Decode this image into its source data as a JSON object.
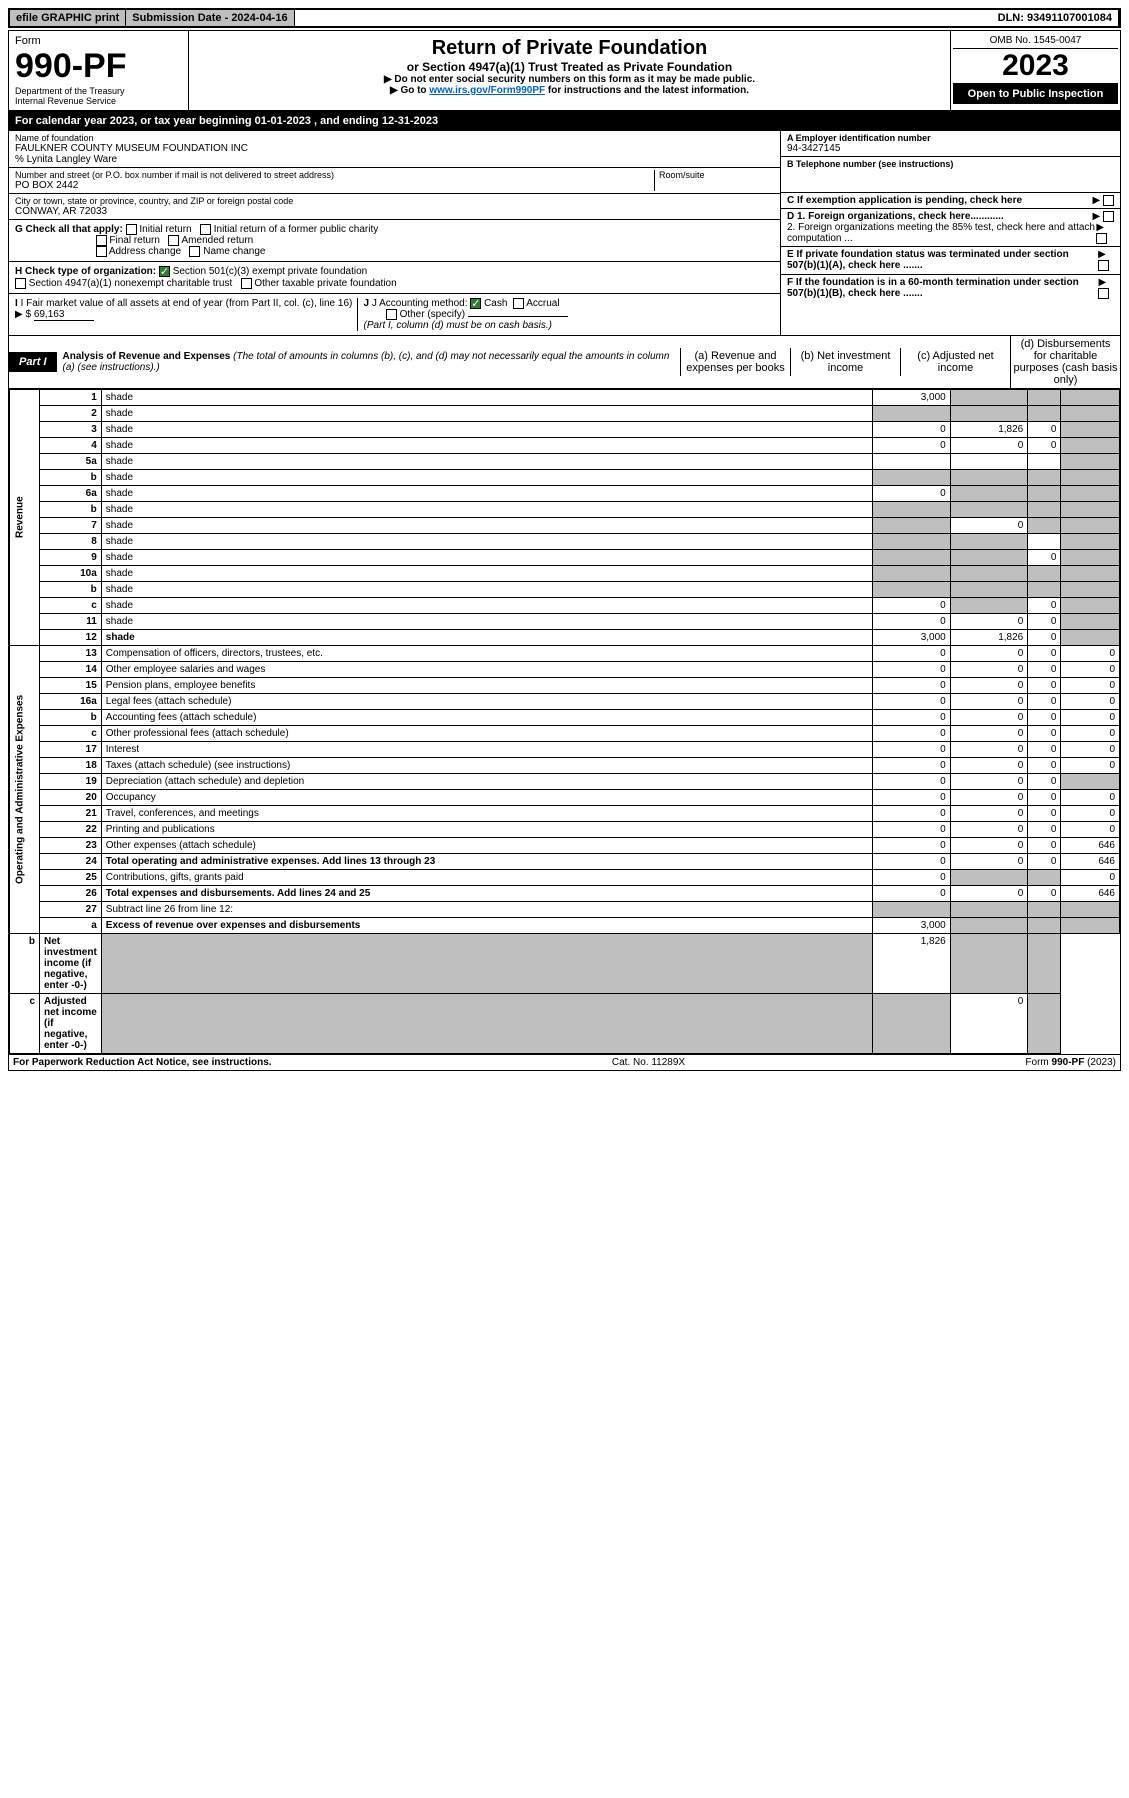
{
  "topbar": {
    "efile": "efile GRAPHIC print",
    "submission_label": "Submission Date - 2024-04-16",
    "dln": "DLN: 93491107001084"
  },
  "header": {
    "form_label": "Form",
    "form_number": "990-PF",
    "dept": "Department of the Treasury",
    "irs": "Internal Revenue Service",
    "title": "Return of Private Foundation",
    "subtitle": "or Section 4947(a)(1) Trust Treated as Private Foundation",
    "instr1": "▶ Do not enter social security numbers on this form as it may be made public.",
    "instr2_pre": "▶ Go to ",
    "instr2_link": "www.irs.gov/Form990PF",
    "instr2_post": " for instructions and the latest information.",
    "omb": "OMB No. 1545-0047",
    "year": "2023",
    "open": "Open to Public Inspection"
  },
  "cal": {
    "text_pre": "For calendar year 2023, or tax year beginning ",
    "begin": "01-01-2023",
    "text_mid": " , and ending ",
    "end": "12-31-2023"
  },
  "id": {
    "name_label": "Name of foundation",
    "name": "FAULKNER COUNTY MUSEUM FOUNDATION INC",
    "care_of": "% Lynita Langley Ware",
    "addr_label": "Number and street (or P.O. box number if mail is not delivered to street address)",
    "addr": "PO BOX 2442",
    "room_label": "Room/suite",
    "city_label": "City or town, state or province, country, and ZIP or foreign postal code",
    "city": "CONWAY, AR  72033",
    "a_label": "A Employer identification number",
    "a_val": "94-3427145",
    "b_label": "B Telephone number (see instructions)",
    "c_label": "C If exemption application is pending, check here",
    "d1": "D 1. Foreign organizations, check here............",
    "d2": "2. Foreign organizations meeting the 85% test, check here and attach computation ...",
    "e": "E  If private foundation status was terminated under section 507(b)(1)(A), check here .......",
    "f": "F  If the foundation is in a 60-month termination under section 507(b)(1)(B), check here .......",
    "g_label": "G Check all that apply:",
    "g_opts": [
      "Initial return",
      "Initial return of a former public charity",
      "Final return",
      "Amended return",
      "Address change",
      "Name change"
    ],
    "h_label": "H Check type of organization:",
    "h1": "Section 501(c)(3) exempt private foundation",
    "h2": "Section 4947(a)(1) nonexempt charitable trust",
    "h3": "Other taxable private foundation",
    "i_label": "I Fair market value of all assets at end of year (from Part II, col. (c), line 16)",
    "i_val": "69,163",
    "j_label": "J Accounting method:",
    "j_cash": "Cash",
    "j_accrual": "Accrual",
    "j_other": "Other (specify)",
    "j_note": "(Part I, column (d) must be on cash basis.)"
  },
  "part1": {
    "tag": "Part I",
    "title": "Analysis of Revenue and Expenses",
    "title_note": "(The total of amounts in columns (b), (c), and (d) may not necessarily equal the amounts in column (a) (see instructions).)",
    "col_a": "(a)  Revenue and expenses per books",
    "col_b": "(b)  Net investment income",
    "col_c": "(c)  Adjusted net income",
    "col_d": "(d)  Disbursements for charitable purposes (cash basis only)",
    "revenue_label": "Revenue",
    "expenses_label": "Operating and Administrative Expenses"
  },
  "rows": [
    {
      "n": "1",
      "d": "shade",
      "a": "3,000",
      "b": "shade",
      "c": "shade"
    },
    {
      "n": "2",
      "d": "shade",
      "a": "shade",
      "b": "shade",
      "c": "shade",
      "bold_parts": true
    },
    {
      "n": "3",
      "d": "shade",
      "a": "0",
      "b": "1,826",
      "c": "0"
    },
    {
      "n": "4",
      "d": "shade",
      "a": "0",
      "b": "0",
      "c": "0"
    },
    {
      "n": "5a",
      "d": "shade",
      "a": "",
      "b": "",
      "c": ""
    },
    {
      "n": "b",
      "d": "shade",
      "a": "shade-under",
      "b": "shade",
      "c": "shade"
    },
    {
      "n": "6a",
      "d": "shade",
      "a": "0",
      "b": "shade",
      "c": "shade"
    },
    {
      "n": "b",
      "d": "shade",
      "a": "shade",
      "b": "shade",
      "c": "shade"
    },
    {
      "n": "7",
      "d": "shade",
      "a": "shade",
      "b": "0",
      "c": "shade"
    },
    {
      "n": "8",
      "d": "shade",
      "a": "shade",
      "b": "shade",
      "c": ""
    },
    {
      "n": "9",
      "d": "shade",
      "a": "shade",
      "b": "shade",
      "c": "0"
    },
    {
      "n": "10a",
      "d": "shade",
      "a": "shade",
      "b": "shade",
      "c": "shade"
    },
    {
      "n": "b",
      "d": "shade",
      "a": "shade",
      "b": "shade",
      "c": "shade"
    },
    {
      "n": "c",
      "d": "shade",
      "a": "0",
      "b": "shade",
      "c": "0"
    },
    {
      "n": "11",
      "d": "shade",
      "a": "0",
      "b": "0",
      "c": "0"
    },
    {
      "n": "12",
      "d": "shade",
      "a": "3,000",
      "b": "1,826",
      "c": "0",
      "bold": true
    },
    {
      "n": "13",
      "d": "Compensation of officers, directors, trustees, etc.",
      "a": "0",
      "b": "0",
      "c": "0",
      "dd": "0"
    },
    {
      "n": "14",
      "d": "Other employee salaries and wages",
      "a": "0",
      "b": "0",
      "c": "0",
      "dd": "0"
    },
    {
      "n": "15",
      "d": "Pension plans, employee benefits",
      "a": "0",
      "b": "0",
      "c": "0",
      "dd": "0"
    },
    {
      "n": "16a",
      "d": "Legal fees (attach schedule)",
      "a": "0",
      "b": "0",
      "c": "0",
      "dd": "0"
    },
    {
      "n": "b",
      "d": "Accounting fees (attach schedule)",
      "a": "0",
      "b": "0",
      "c": "0",
      "dd": "0"
    },
    {
      "n": "c",
      "d": "Other professional fees (attach schedule)",
      "a": "0",
      "b": "0",
      "c": "0",
      "dd": "0"
    },
    {
      "n": "17",
      "d": "Interest",
      "a": "0",
      "b": "0",
      "c": "0",
      "dd": "0"
    },
    {
      "n": "18",
      "d": "Taxes (attach schedule) (see instructions)",
      "a": "0",
      "b": "0",
      "c": "0",
      "dd": "0"
    },
    {
      "n": "19",
      "d": "Depreciation (attach schedule) and depletion",
      "a": "0",
      "b": "0",
      "c": "0",
      "dd": "shade"
    },
    {
      "n": "20",
      "d": "Occupancy",
      "a": "0",
      "b": "0",
      "c": "0",
      "dd": "0"
    },
    {
      "n": "21",
      "d": "Travel, conferences, and meetings",
      "a": "0",
      "b": "0",
      "c": "0",
      "dd": "0"
    },
    {
      "n": "22",
      "d": "Printing and publications",
      "a": "0",
      "b": "0",
      "c": "0",
      "dd": "0"
    },
    {
      "n": "23",
      "d": "Other expenses (attach schedule)",
      "a": "0",
      "b": "0",
      "c": "0",
      "dd": "646"
    },
    {
      "n": "24",
      "d": "Total operating and administrative expenses. Add lines 13 through 23",
      "a": "0",
      "b": "0",
      "c": "0",
      "dd": "646",
      "bold": true
    },
    {
      "n": "25",
      "d": "Contributions, gifts, grants paid",
      "a": "0",
      "b": "shade",
      "c": "shade",
      "dd": "0"
    },
    {
      "n": "26",
      "d": "Total expenses and disbursements. Add lines 24 and 25",
      "a": "0",
      "b": "0",
      "c": "0",
      "dd": "646",
      "bold": true
    },
    {
      "n": "27",
      "d": "Subtract line 26 from line 12:",
      "a": "shade",
      "b": "shade",
      "c": "shade",
      "dd": "shade"
    },
    {
      "n": "a",
      "d": "Excess of revenue over expenses and disbursements",
      "a": "3,000",
      "b": "shade",
      "c": "shade",
      "dd": "shade",
      "bold": true
    },
    {
      "n": "b",
      "d": "Net investment income (if negative, enter -0-)",
      "a": "shade",
      "b": "1,826",
      "c": "shade",
      "dd": "shade",
      "bold": true
    },
    {
      "n": "c",
      "d": "Adjusted net income (if negative, enter -0-)",
      "a": "shade",
      "b": "shade",
      "c": "0",
      "dd": "shade",
      "bold": true
    }
  ],
  "footer": {
    "left": "For Paperwork Reduction Act Notice, see instructions.",
    "mid": "Cat. No. 11289X",
    "right": "Form 990-PF (2023)"
  },
  "colors": {
    "shade": "#bfbfbf",
    "link": "#0060cf",
    "check": "#2e7d32"
  }
}
